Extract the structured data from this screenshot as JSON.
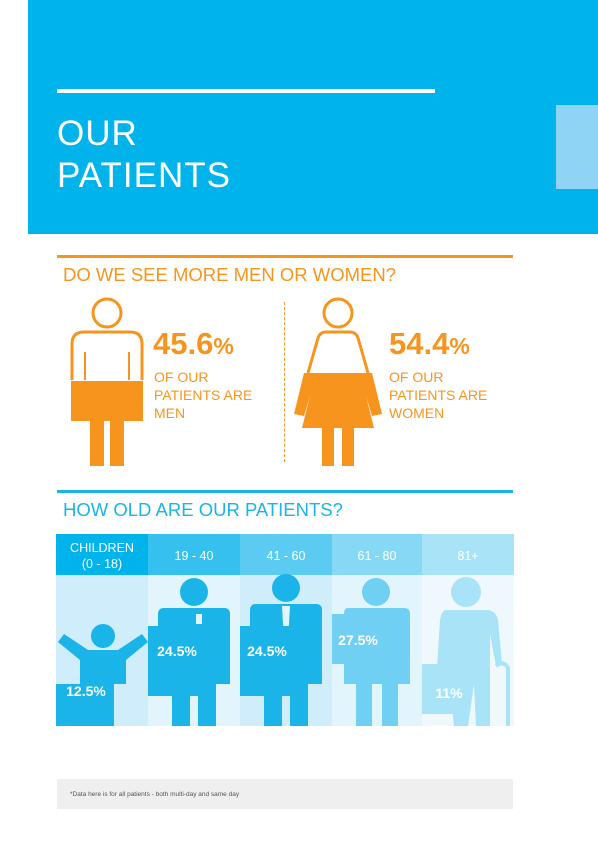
{
  "header": {
    "title_line1": "OUR",
    "title_line2": "PATIENTS",
    "color": "#00b3ea"
  },
  "gender": {
    "heading": "DO WE SEE MORE MEN OR WOMEN?",
    "men": {
      "percent": "45.6",
      "unit": "%",
      "desc_lines": [
        "OF OUR",
        "PATIENTS ARE",
        "MEN"
      ]
    },
    "women": {
      "percent": "54.4",
      "unit": "%",
      "desc_lines": [
        "OF OUR",
        "PATIENTS ARE",
        "WOMEN"
      ]
    },
    "accent": "#f7941d"
  },
  "age": {
    "heading": "HOW OLD ARE OUR PATIENTS?",
    "accent": "#1ab4e8",
    "groups": [
      {
        "label_lines": [
          "CHILDREN",
          "(0 - 18)"
        ],
        "value": "12.5%"
      },
      {
        "label_lines": [
          "19 - 40"
        ],
        "value": "24.5%"
      },
      {
        "label_lines": [
          "41 - 60"
        ],
        "value": "24.5%"
      },
      {
        "label_lines": [
          "61 - 80"
        ],
        "value": "27.5%"
      },
      {
        "label_lines": [
          "81+"
        ],
        "value": "11%"
      }
    ]
  },
  "footnote": "*Data here is for all patients - both multi-day and same day"
}
